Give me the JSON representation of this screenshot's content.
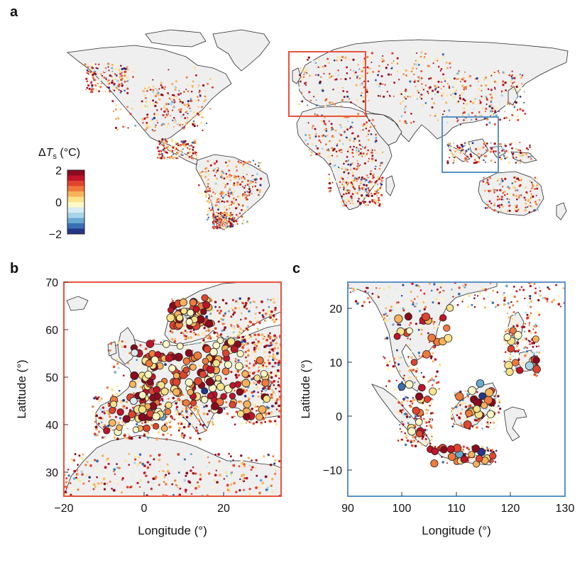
{
  "panels": {
    "a": {
      "label": "a"
    },
    "b": {
      "label": "b"
    },
    "c": {
      "label": "c"
    }
  },
  "colorbar": {
    "title_prefix": "Δ",
    "title_var": "T",
    "title_sub": "s",
    "title_unit": " (°C)",
    "ticks": [
      "2",
      "0",
      "−2"
    ],
    "colors": [
      "#8b0a1e",
      "#c0142a",
      "#e0442e",
      "#f07a3c",
      "#f8b35a",
      "#fce38a",
      "#fef8c6",
      "#d6ecf2",
      "#a8d4e8",
      "#6aa9d2",
      "#3a6fb4",
      "#23368a"
    ]
  },
  "colors": {
    "europe_box": "#e8533c",
    "sea_box": "#5b93c9",
    "land": "#efefef",
    "coast": "#2a2a2a"
  },
  "panel_b": {
    "xlabel": "Longitude (°)",
    "ylabel": "Latitude (°)",
    "xticks": [
      "−20",
      "0",
      "20"
    ],
    "yticks": [
      "70",
      "60",
      "50",
      "40",
      "30"
    ]
  },
  "panel_c": {
    "xlabel": "Longitude (°)",
    "ylabel": "Latitude (°)",
    "xticks": [
      "90",
      "100",
      "110",
      "120",
      "130"
    ],
    "yticks": [
      "20",
      "10",
      "0",
      "−10"
    ]
  }
}
